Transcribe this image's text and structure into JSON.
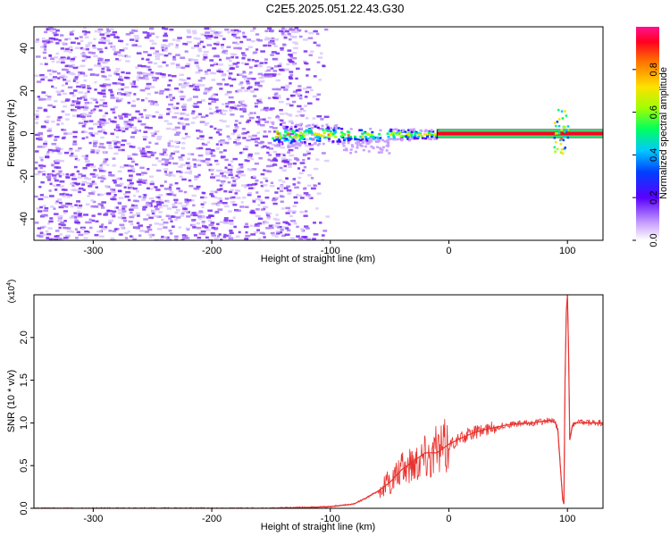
{
  "title": "C2E5.2025.051.22.43.G30",
  "colors": {
    "purple": "#7a2cf0",
    "light_purple": "#d9c8fb",
    "line_red": "#e8332f"
  },
  "chart_data": [
    {
      "type": "heatmap",
      "xlabel": "Height of straight line (km)",
      "ylabel": "Frequency (Hz)",
      "xlim": [
        -350,
        130
      ],
      "ylim": [
        -50,
        50
      ],
      "xticks": [
        -300,
        -200,
        -100,
        0,
        100
      ],
      "yticks": [
        -40,
        -20,
        0,
        20,
        40
      ],
      "colorbar": {
        "label": "Normalized spectral amplitude",
        "range": [
          0,
          1
        ],
        "ticks": [
          "0.0",
          "0.2",
          "0.4",
          "0.6",
          "0.8"
        ],
        "tick_values": [
          0,
          0.2,
          0.4,
          0.6,
          0.8
        ]
      },
      "features": [
        {
          "x_range": [
            -350,
            -110
          ],
          "y_range": [
            -50,
            50
          ],
          "amplitude": 0.05
        },
        {
          "x_range": [
            -150,
            -10
          ],
          "y_center": 0,
          "amplitude": 0.5
        },
        {
          "x_range": [
            -10,
            130
          ],
          "y_center": 0,
          "amplitude": 1.0
        },
        {
          "x_range": [
            88,
            100
          ],
          "y_range": [
            -10,
            12
          ],
          "amplitude": 0.9
        }
      ]
    },
    {
      "type": "line",
      "xlabel": "Height of straight line (km)",
      "ylabel": "SNR (10 * v/v)",
      "y_multiplier": "(x10",
      "y_multiplier_exp": "4",
      "y_multiplier_close": ")",
      "xlim": [
        -350,
        130
      ],
      "ylim": [
        0,
        2.5
      ],
      "xticks": [
        -300,
        -200,
        -100,
        0,
        100
      ],
      "yticks": [
        "0.0",
        "0.5",
        "1.0",
        "1.5",
        "2.0"
      ],
      "ytick_values": [
        0,
        0.5,
        1.0,
        1.5,
        2.0
      ],
      "series": [
        {
          "x": [
            -350,
            -300,
            -250,
            -200,
            -150,
            -120,
            -100,
            -80,
            -70,
            -60,
            -50,
            -40,
            -30,
            -20,
            -10,
            0,
            10,
            20,
            30,
            40,
            50,
            60,
            70,
            80,
            85,
            90,
            92,
            94,
            96,
            97,
            98,
            99,
            100,
            101,
            102,
            104,
            106,
            110,
            120,
            130
          ],
          "y": [
            0.0,
            0.0,
            0.0,
            0.0,
            0.0,
            0.01,
            0.02,
            0.05,
            0.12,
            0.2,
            0.3,
            0.45,
            0.55,
            0.65,
            0.65,
            0.75,
            0.82,
            0.88,
            0.92,
            0.95,
            0.98,
            0.99,
            1.0,
            1.02,
            1.03,
            1.0,
            0.9,
            0.5,
            0.1,
            0.05,
            1.5,
            2.3,
            2.5,
            1.8,
            0.8,
            0.95,
            1.0,
            1.0,
            1.0,
            1.0
          ]
        }
      ]
    }
  ]
}
